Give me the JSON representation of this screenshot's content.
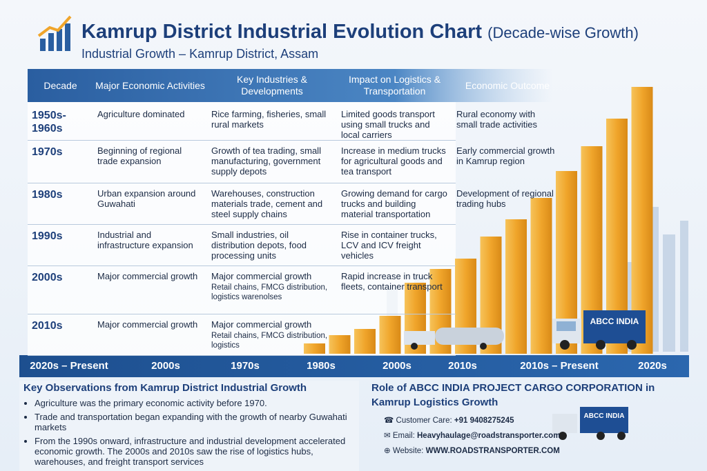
{
  "header": {
    "title": "Kamrup District Industrial Evolution Chart",
    "title_note": "(Decade-wise Growth)",
    "subtitle": "Industrial Growth – Kamrup District, Assam"
  },
  "table": {
    "columns": [
      "Decade",
      "Major Economic Activities",
      "Key Industries & Developments",
      "Impact on Logistics & Transportation",
      "Economic Outcome"
    ],
    "rows": [
      {
        "decade": "1950s-1960s",
        "activities": "Agriculture dominated",
        "industries": "Rice farming, fisheries, small rural markets",
        "logistics": "Limited goods transport using small trucks and local carriers",
        "outcome": "Rural economy with small trade activities"
      },
      {
        "decade": "1970s",
        "activities": "Beginning of regional trade expansion",
        "industries": "Growth of tea trading, small manufacturing, government supply depots",
        "logistics": "Increase in medium trucks for agricultural goods and tea transport",
        "outcome": "Early commercial growth in Kamrup region"
      },
      {
        "decade": "1980s",
        "activities": "Urban expansion around Guwahati",
        "industries": "Warehouses, construction materials trade, cement and steel supply chains",
        "logistics": "Growing demand for cargo trucks and building material transportation",
        "outcome": "Development of regional trading hubs"
      },
      {
        "decade": "1990s",
        "activities": "Industrial and infrastructure expansion",
        "industries": "Small industries, oil distribution depots, food processing units",
        "logistics": "Rise in container trucks, LCV and ICV freight vehicles"
      },
      {
        "decade": "2000s",
        "activities": "Major commercial growth",
        "industries": "Major commercial growth",
        "industries_detail": "Retail chains, FMCG distribution, logistics warenolses",
        "logistics": "Rapid increase in truck fleets, container transport"
      },
      {
        "decade": "2010s",
        "activities": "Major commercial growth",
        "industries": "Major commercial growth",
        "industries_detail": "Retail chains, FMCG distribution, logistics"
      }
    ]
  },
  "timeline": [
    "2020s – Present",
    "2000s",
    "1970s",
    "1980s",
    "2000s",
    "2010s",
    "2010s – Present",
    "2020s"
  ],
  "observations": {
    "title": "Key Observations from Kamrup District Industrial Growth",
    "items": [
      "Agriculture was the primary economic activity before 1970.",
      "Trade and transportation began expanding with the growth of nearby Guwahati markets",
      "From the 1990s onward, infrastructure and industrial development accelerated economic growth. The 2000s and 2010s saw the rise of logistics hubs, warehouses, and freight transport services"
    ]
  },
  "role": {
    "title": "Role of ABCC INDIA PROJECT CARGO CORPORATION in Kamrup Logistics Growth",
    "customer_care_label": "Customer Care:",
    "customer_care": "+91 9408275245",
    "email_label": "Email:",
    "email": "Heavyhaulage@roadstransporter.com",
    "website_label": "Website:",
    "website": "WWW.ROADSTRANSPORTER.COM"
  },
  "truck_label": "ABCC INDIA"
}
